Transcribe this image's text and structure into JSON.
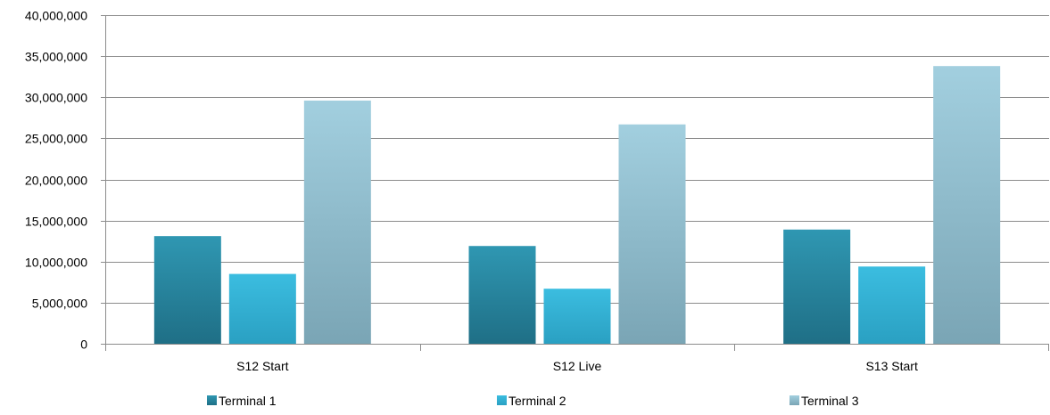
{
  "chart_data": {
    "type": "bar",
    "categories": [
      "S12 Start",
      "S12 Live",
      "S13 Start"
    ],
    "series": [
      {
        "name": "Terminal 1",
        "values": [
          13100000,
          11900000,
          13900000
        ],
        "color": "#2b8aa3"
      },
      {
        "name": "Terminal 2",
        "values": [
          8500000,
          6700000,
          9400000
        ],
        "color": "#36b3d7"
      },
      {
        "name": "Terminal 3",
        "values": [
          29600000,
          26700000,
          33800000
        ],
        "color": "#93c3d3"
      }
    ],
    "ylim": [
      0,
      40000000
    ],
    "yticks": [
      0,
      5000000,
      10000000,
      15000000,
      20000000,
      25000000,
      30000000,
      35000000,
      40000000
    ],
    "ytick_labels": [
      "0",
      "5,000,000",
      "10,000,000",
      "15,000,000",
      "20,000,000",
      "25,000,000",
      "30,000,000",
      "35,000,000",
      "40,000,000"
    ],
    "grid": true,
    "legend_position": "bottom",
    "title": "",
    "xlabel": "",
    "ylabel": ""
  }
}
